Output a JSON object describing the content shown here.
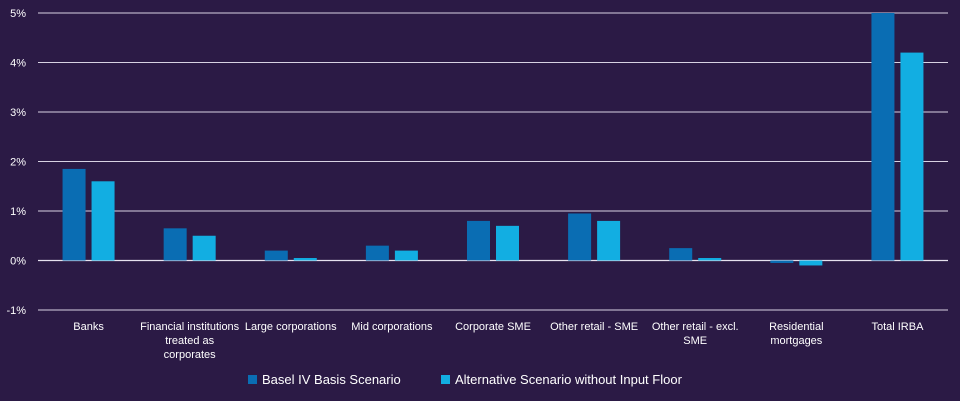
{
  "chart_data": {
    "type": "bar",
    "title": "",
    "xlabel": "",
    "ylabel": "",
    "ylim": [
      -1,
      5
    ],
    "y_ticks": [
      -1,
      0,
      1,
      2,
      3,
      4,
      5
    ],
    "y_tick_labels": [
      "-1%",
      "0%",
      "1%",
      "2%",
      "3%",
      "4%",
      "5%"
    ],
    "grid": true,
    "legend_position": "bottom",
    "categories": [
      [
        "Banks"
      ],
      [
        "Financial institutions",
        "treated as",
        "corporates"
      ],
      [
        "Large corporations"
      ],
      [
        "Mid corporations"
      ],
      [
        "Corporate SME"
      ],
      [
        "Other retail - SME"
      ],
      [
        "Other retail - excl.",
        "SME"
      ],
      [
        "Residential",
        "mortgages"
      ],
      [
        "Total IRBA"
      ]
    ],
    "series": [
      {
        "name": "Basel IV Basis Scenario",
        "color": "#0a6db3",
        "values": [
          1.85,
          0.65,
          0.2,
          0.3,
          0.8,
          0.95,
          0.25,
          -0.05,
          5.0
        ]
      },
      {
        "name": "Alternative Scenario without Input Floor",
        "color": "#12aee2",
        "values": [
          1.6,
          0.5,
          0.05,
          0.2,
          0.7,
          0.8,
          0.05,
          -0.1,
          4.2
        ]
      }
    ]
  }
}
